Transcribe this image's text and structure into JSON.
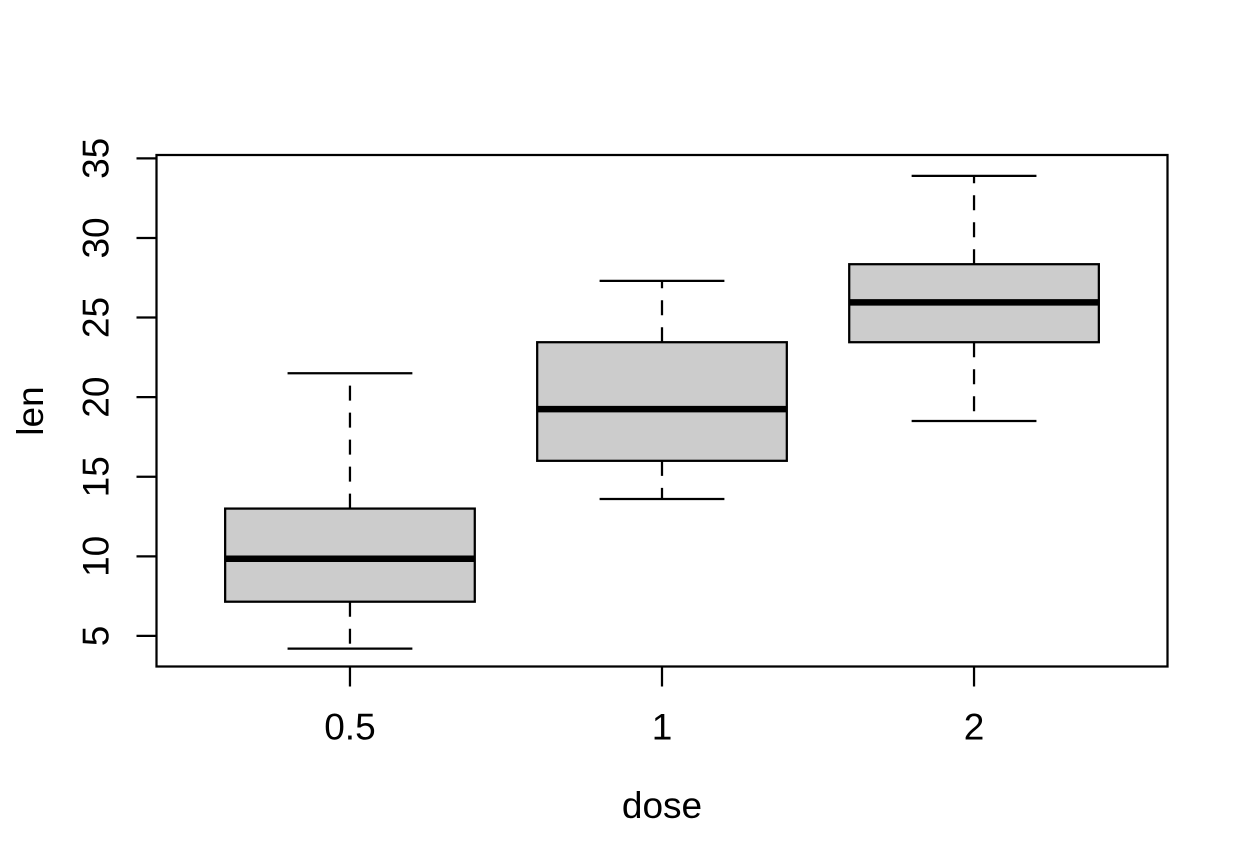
{
  "chart_data": {
    "type": "boxplot",
    "title": "",
    "xlabel": "dose",
    "ylabel": "len",
    "categories": [
      "0.5",
      "1",
      "2"
    ],
    "y_ticks": [
      5,
      10,
      15,
      20,
      25,
      30,
      35
    ],
    "ylim": [
      3.08,
      35.21
    ],
    "xlim": [
      0.38,
      3.62
    ],
    "box_width": 0.8,
    "staple_width": 0.4,
    "grid": false,
    "legend": "none",
    "stats": [
      {
        "category": "0.5",
        "whisker_low": 4.2,
        "q1": 7.15,
        "median": 9.85,
        "q3": 13.0,
        "whisker_high": 21.5,
        "outliers": []
      },
      {
        "category": "1",
        "whisker_low": 13.6,
        "q1": 16.0,
        "median": 19.25,
        "q3": 23.45,
        "whisker_high": 27.3,
        "outliers": []
      },
      {
        "category": "2",
        "whisker_low": 18.5,
        "q1": 23.45,
        "median": 25.95,
        "q3": 28.35,
        "whisker_high": 33.9,
        "outliers": []
      }
    ],
    "colors": {
      "box_fill": "#CCCCCC",
      "line": "#000000",
      "median": "#000000",
      "background": "#FFFFFF"
    }
  }
}
